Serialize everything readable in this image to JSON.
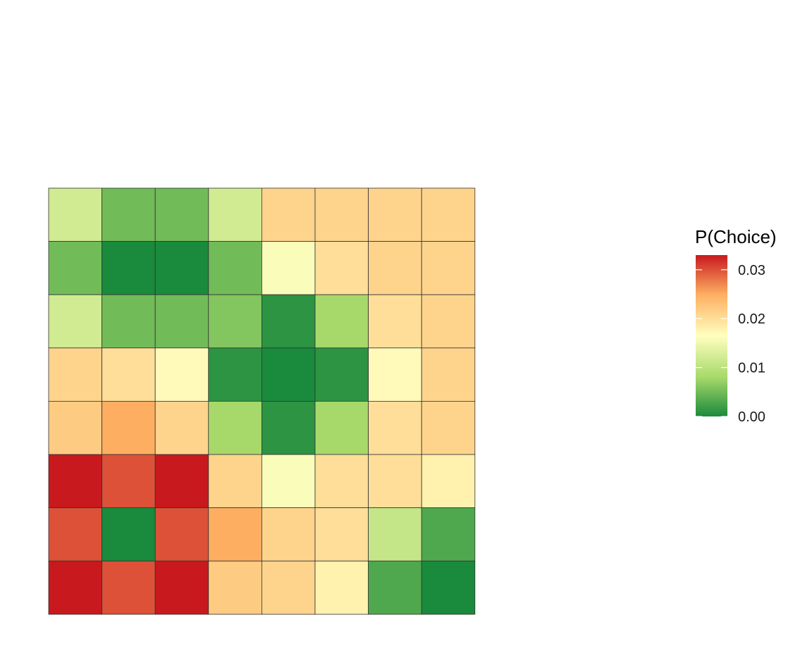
{
  "chart_data": {
    "type": "heatmap",
    "title": "",
    "xlabel": "",
    "ylabel": "",
    "rows": 8,
    "cols": 8,
    "values": [
      [
        0.012,
        0.005,
        0.005,
        0.012,
        0.021,
        0.021,
        0.021,
        0.021
      ],
      [
        0.005,
        0.0,
        0.0,
        0.005,
        0.016,
        0.02,
        0.021,
        0.021
      ],
      [
        0.012,
        0.005,
        0.005,
        0.006,
        0.001,
        0.008,
        0.02,
        0.021
      ],
      [
        0.021,
        0.02,
        0.017,
        0.001,
        0.0,
        0.001,
        0.017,
        0.021
      ],
      [
        0.022,
        0.025,
        0.021,
        0.008,
        0.001,
        0.008,
        0.02,
        0.021
      ],
      [
        0.033,
        0.03,
        0.033,
        0.021,
        0.016,
        0.02,
        0.02,
        0.018
      ],
      [
        0.03,
        0.0,
        0.03,
        0.025,
        0.021,
        0.02,
        0.011,
        0.003
      ],
      [
        0.033,
        0.03,
        0.033,
        0.022,
        0.021,
        0.018,
        0.003,
        0.0
      ]
    ],
    "value_range": [
      0.0,
      0.033
    ],
    "grid": false,
    "legend": {
      "title": "P(Choice)",
      "placement": "right",
      "ticks": [
        0.0,
        0.01,
        0.02,
        0.03
      ],
      "tick_labels": [
        "0.00",
        "0.01",
        "0.02",
        "0.03"
      ],
      "color_stops": [
        {
          "value": 0.0,
          "color": "#1a8a3c"
        },
        {
          "value": 0.008,
          "color": "#a6d96a"
        },
        {
          "value": 0.0165,
          "color": "#ffffbf"
        },
        {
          "value": 0.025,
          "color": "#fdae61"
        },
        {
          "value": 0.033,
          "color": "#c8191e"
        }
      ]
    },
    "cell_border_color": "#333333"
  }
}
